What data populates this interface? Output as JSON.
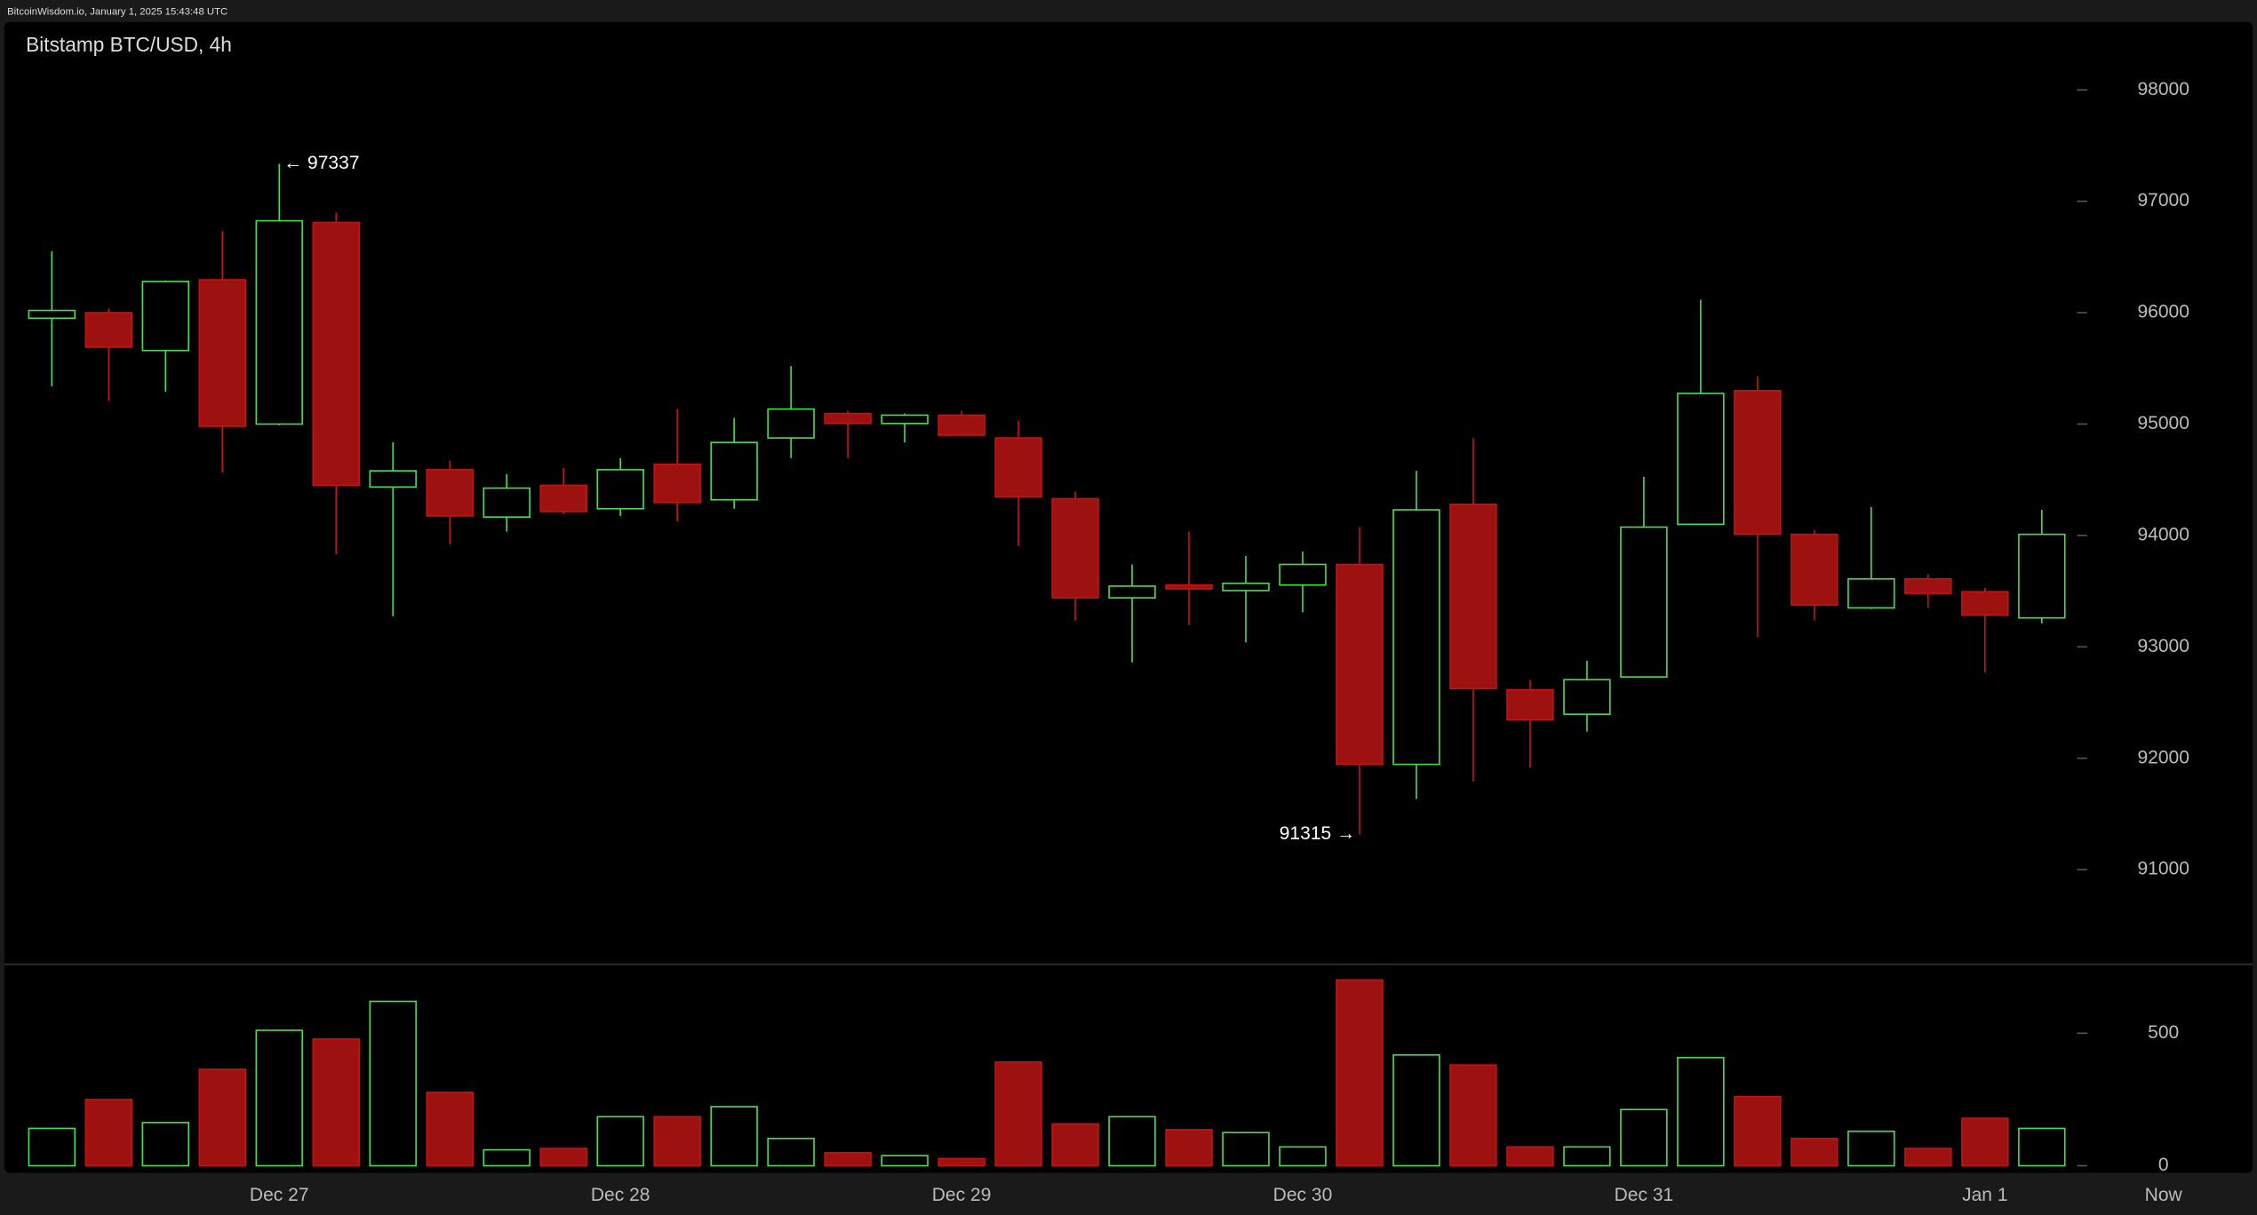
{
  "header": "BitcoinWisdom.io, January 1, 2025 15:43:48 UTC",
  "chart_data": {
    "type": "candlestick",
    "title": "Bitstamp BTC/USD, 4h",
    "categories": [
      null,
      null,
      null,
      null,
      "Dec 27",
      null,
      null,
      null,
      null,
      null,
      "Dec 28",
      null,
      null,
      null,
      null,
      null,
      "Dec 29",
      null,
      null,
      null,
      null,
      null,
      "Dec 30",
      null,
      null,
      null,
      null,
      null,
      "Dec 31",
      null,
      null,
      null,
      null,
      null,
      "Jan 1",
      null
    ],
    "now_label": "Now",
    "open": [
      95950,
      96000,
      95660,
      96295,
      95000,
      96810,
      94435,
      94590,
      94165,
      94450,
      94240,
      94640,
      94320,
      94875,
      95095,
      95005,
      95080,
      94875,
      94330,
      93440,
      93555,
      93505,
      93555,
      93740,
      91945,
      94280,
      92615,
      92395,
      92730,
      94100,
      95300,
      94010,
      93350,
      93610,
      93495,
      93260
    ],
    "high": [
      96550,
      96035,
      96290,
      96735,
      97337,
      96900,
      94835,
      94670,
      94550,
      94605,
      94695,
      95135,
      95055,
      95520,
      95120,
      95095,
      95120,
      95030,
      94395,
      93740,
      94035,
      93815,
      93855,
      94075,
      94580,
      94875,
      92705,
      92875,
      94525,
      96115,
      95430,
      94050,
      94255,
      93650,
      93530,
      94230
    ],
    "low": [
      95340,
      95210,
      95290,
      94565,
      94990,
      93830,
      93275,
      93920,
      94035,
      94190,
      94175,
      94125,
      94240,
      94695,
      94695,
      94835,
      94900,
      93905,
      93235,
      92860,
      93195,
      93040,
      93310,
      91315,
      91635,
      91790,
      91915,
      92240,
      92730,
      94100,
      93090,
      93235,
      93340,
      93350,
      92770,
      93210
    ],
    "close": [
      96020,
      95690,
      96280,
      94980,
      96825,
      94450,
      94580,
      94175,
      94425,
      94215,
      94590,
      94295,
      94835,
      95135,
      95005,
      95080,
      94900,
      94345,
      93440,
      93545,
      93520,
      93570,
      93740,
      91945,
      94230,
      92625,
      92345,
      92705,
      94075,
      95275,
      94010,
      93375,
      93610,
      93480,
      93285,
      94010
    ],
    "volume": [
      141,
      250,
      163,
      364,
      511,
      478,
      620,
      277,
      60,
      65,
      185,
      185,
      223,
      103,
      49,
      38,
      27,
      391,
      158,
      185,
      136,
      125,
      71,
      701,
      418,
      380,
      71,
      71,
      212,
      408,
      261,
      103,
      130,
      65,
      179,
      141
    ],
    "up_color": "#4cdb4c",
    "down_color": "#9e1111",
    "ylim": [
      90150,
      98610
    ],
    "yticks": [
      91000,
      92000,
      93000,
      94000,
      95000,
      96000,
      97000,
      98000
    ],
    "volume_ylim": [
      0,
      760
    ],
    "volume_yticks": [
      0,
      500
    ],
    "annotations": [
      {
        "text": "← 97337"
      },
      {
        "text": "91315 →"
      }
    ]
  }
}
